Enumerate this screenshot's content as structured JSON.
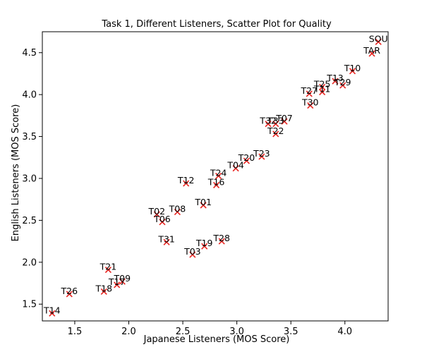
{
  "chart_data": {
    "type": "scatter",
    "title": "Task 1, Different Listeners, Scatter Plot for Quality",
    "xlabel": "Japanese Listeners (MOS Score)",
    "ylabel": "English Listeners (MOS Score)",
    "xlim": [
      1.2,
      4.4
    ],
    "ylim": [
      1.3,
      4.75
    ],
    "xticks": [
      1.5,
      2.0,
      2.5,
      3.0,
      3.5,
      4.0
    ],
    "xtick_labels": [
      "1.5",
      "2.0",
      "2.5",
      "3.0",
      "3.5",
      "4.0"
    ],
    "yticks": [
      1.5,
      2.0,
      2.5,
      3.0,
      3.5,
      4.0,
      4.5
    ],
    "ytick_labels": [
      "1.5",
      "2.0",
      "2.5",
      "3.0",
      "3.5",
      "4.0",
      "4.5"
    ],
    "marker": "x",
    "marker_color": "#e8221e",
    "grid": false,
    "legend": "none",
    "points": [
      {
        "label": "SOU",
        "x": 4.31,
        "y": 4.63
      },
      {
        "label": "TAR",
        "x": 4.25,
        "y": 4.49
      },
      {
        "label": "T10",
        "x": 4.07,
        "y": 4.28
      },
      {
        "label": "T13",
        "x": 3.91,
        "y": 4.16
      },
      {
        "label": "T29",
        "x": 3.98,
        "y": 4.11
      },
      {
        "label": "T25",
        "x": 3.79,
        "y": 4.09
      },
      {
        "label": "T11",
        "x": 3.79,
        "y": 4.03
      },
      {
        "label": "T27",
        "x": 3.67,
        "y": 4.01
      },
      {
        "label": "T30",
        "x": 3.68,
        "y": 3.87
      },
      {
        "label": "T07",
        "x": 3.44,
        "y": 3.68
      },
      {
        "label": "T33",
        "x": 3.36,
        "y": 3.65
      },
      {
        "label": "T32",
        "x": 3.29,
        "y": 3.65
      },
      {
        "label": "T22",
        "x": 3.36,
        "y": 3.53
      },
      {
        "label": "T23",
        "x": 3.23,
        "y": 3.26
      },
      {
        "label": "T20",
        "x": 3.09,
        "y": 3.21
      },
      {
        "label": "T04",
        "x": 2.99,
        "y": 3.12
      },
      {
        "label": "T24",
        "x": 2.83,
        "y": 3.03
      },
      {
        "label": "T16",
        "x": 2.81,
        "y": 2.92
      },
      {
        "label": "T12",
        "x": 2.53,
        "y": 2.94
      },
      {
        "label": "T01",
        "x": 2.69,
        "y": 2.68
      },
      {
        "label": "T08",
        "x": 2.45,
        "y": 2.6
      },
      {
        "label": "T02",
        "x": 2.26,
        "y": 2.57
      },
      {
        "label": "T06",
        "x": 2.31,
        "y": 2.48
      },
      {
        "label": "T31",
        "x": 2.35,
        "y": 2.24
      },
      {
        "label": "T28",
        "x": 2.86,
        "y": 2.25
      },
      {
        "label": "T19",
        "x": 2.7,
        "y": 2.19
      },
      {
        "label": "T03",
        "x": 2.59,
        "y": 2.09
      },
      {
        "label": "T21",
        "x": 1.81,
        "y": 1.91
      },
      {
        "label": "T09",
        "x": 1.94,
        "y": 1.77
      },
      {
        "label": "T17",
        "x": 1.89,
        "y": 1.73
      },
      {
        "label": "T18",
        "x": 1.77,
        "y": 1.65
      },
      {
        "label": "T26",
        "x": 1.45,
        "y": 1.62
      },
      {
        "label": "T14",
        "x": 1.29,
        "y": 1.39
      }
    ]
  }
}
